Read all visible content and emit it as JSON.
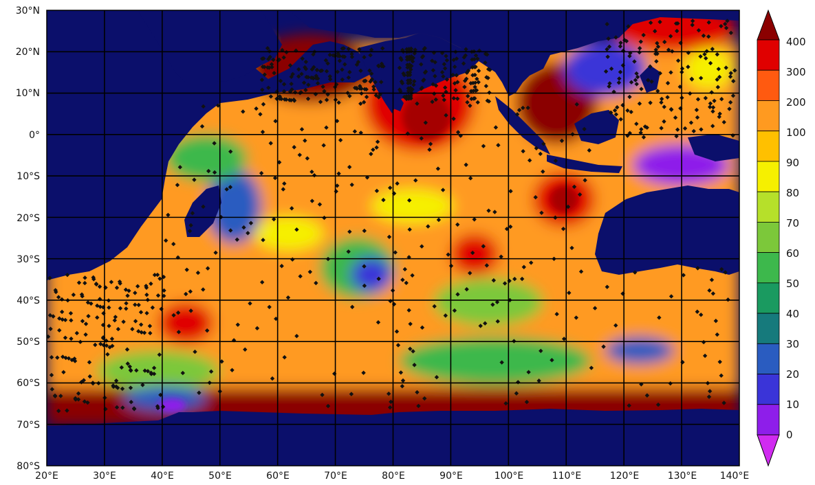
{
  "map": {
    "lat_ticks": [
      "30°N",
      "20°N",
      "10°N",
      "0°",
      "10°S",
      "20°S",
      "30°S",
      "40°S",
      "50°S",
      "60°S",
      "70°S",
      "80°S"
    ],
    "lon_ticks": [
      "20°E",
      "30°E",
      "40°E",
      "50°E",
      "60°E",
      "70°E",
      "80°E",
      "90°E",
      "100°E",
      "110°E",
      "120°E",
      "130°E",
      "140°E"
    ],
    "grid": true,
    "ocean_color": "#0b0f6b",
    "colorbar": {
      "labels": [
        "400",
        "300",
        "200",
        "100",
        "90",
        "80",
        "70",
        "60",
        "50",
        "40",
        "30",
        "20",
        "10",
        "0"
      ],
      "colors": [
        "#8b0000",
        "#e00000",
        "#ff5a10",
        "#ff9a20",
        "#ffc000",
        "#f6f000",
        "#b6e02a",
        "#7cc83a",
        "#3db84c",
        "#1a9a60",
        "#167a7c",
        "#2a5cc0",
        "#3a34d8",
        "#8e1eea",
        "#d02bf0"
      ],
      "top_arrow_color": "#8b0000",
      "bottom_arrow_color": "#d02bf0"
    }
  }
}
